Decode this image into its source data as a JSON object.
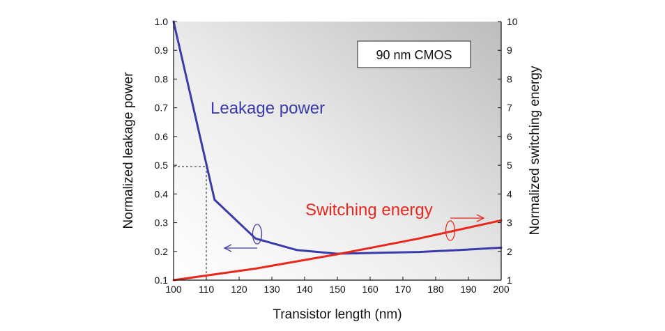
{
  "chart_data": {
    "type": "line",
    "xlabel": "Transistor length (nm)",
    "ylabel_left": "Normalized leakage power",
    "ylabel_right": "Normalized switching energy",
    "xlim": [
      100,
      200
    ],
    "ylim_left": [
      0.1,
      1.0
    ],
    "ylim_right": [
      1,
      10
    ],
    "x_ticks": [
      100,
      110,
      120,
      130,
      140,
      150,
      160,
      170,
      180,
      190,
      200
    ],
    "y_ticks_left": [
      "0.1",
      "0.2",
      "0.3",
      "0.4",
      "0.5",
      "0.6",
      "0.7",
      "0.8",
      "0.9",
      "1.0"
    ],
    "y_ticks_right": [
      "1",
      "2",
      "3",
      "4",
      "5",
      "6",
      "7",
      "8",
      "9",
      "10"
    ],
    "grid": false,
    "badge": "90 nm CMOS",
    "series": [
      {
        "name": "Leakage power",
        "axis": "left",
        "color": "#3b3ba8",
        "x": [
          100,
          112.5,
          125,
          137.5,
          150,
          162.5,
          175,
          187.5,
          200
        ],
        "y": [
          1.0,
          0.38,
          0.245,
          0.205,
          0.192,
          0.195,
          0.198,
          0.205,
          0.213
        ]
      },
      {
        "name": "Switching energy",
        "axis": "right",
        "color": "#e8281e",
        "x": [
          100,
          125,
          150,
          175,
          200
        ],
        "y": [
          1.0,
          1.4,
          1.9,
          2.45,
          3.08
        ]
      }
    ],
    "reference_point": {
      "x": 110,
      "y": 0.495
    }
  }
}
